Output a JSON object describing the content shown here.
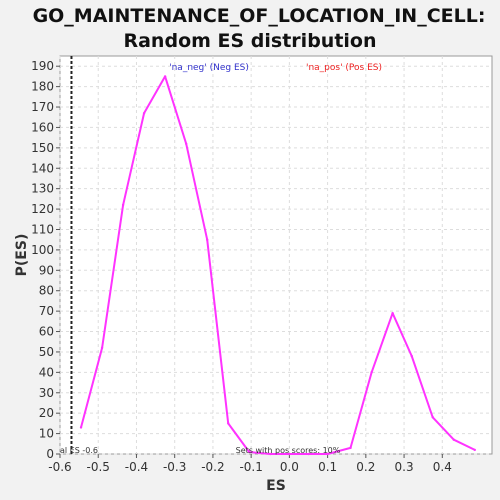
{
  "chart_data": {
    "type": "line",
    "title_line1": "GO_MAINTENANCE_OF_LOCATION_IN_CELL:",
    "title_line2": "Random ES distribution",
    "xlabel": "ES",
    "ylabel": "P(ES)",
    "xlim": [
      -0.6,
      0.53
    ],
    "ylim": [
      0,
      195
    ],
    "xticks": [
      -0.6,
      -0.5,
      -0.4,
      -0.3,
      -0.2,
      -0.1,
      0.0,
      0.1,
      0.2,
      0.3,
      0.4
    ],
    "yticks": [
      0,
      10,
      20,
      30,
      40,
      50,
      60,
      70,
      80,
      90,
      100,
      110,
      120,
      130,
      140,
      150,
      160,
      170,
      180,
      190
    ],
    "grid": true,
    "legend": {
      "neg": "'na_neg' (Neg ES)",
      "pos": "'na_pos' (Pos ES)",
      "neg_color": "#3333cc",
      "pos_color": "#ee2222"
    },
    "series": [
      {
        "color": "#ff33ff",
        "x": [
          -0.545,
          -0.49,
          -0.435,
          -0.38,
          -0.325,
          -0.27,
          -0.215,
          -0.16,
          -0.105,
          -0.05,
          0.0,
          0.05,
          0.1,
          0.16,
          0.215,
          0.27,
          0.32,
          0.375,
          0.43,
          0.485
        ],
        "y": [
          13,
          52,
          122,
          167,
          185,
          152,
          105,
          15,
          1,
          0,
          0,
          0,
          0,
          3,
          40,
          69,
          48,
          18,
          7,
          2
        ]
      }
    ],
    "actual_es": -0.57,
    "annotations": {
      "actual_es_label": "al ES -0.6",
      "pos_scores_label": "Sets with pos scores: 10%"
    },
    "colors": {
      "plot_bg": "#ffffff",
      "page_bg": "#f2f2f2",
      "grid": "#dddddd",
      "line": "#ff33ff",
      "marker_line": "#222222"
    }
  }
}
